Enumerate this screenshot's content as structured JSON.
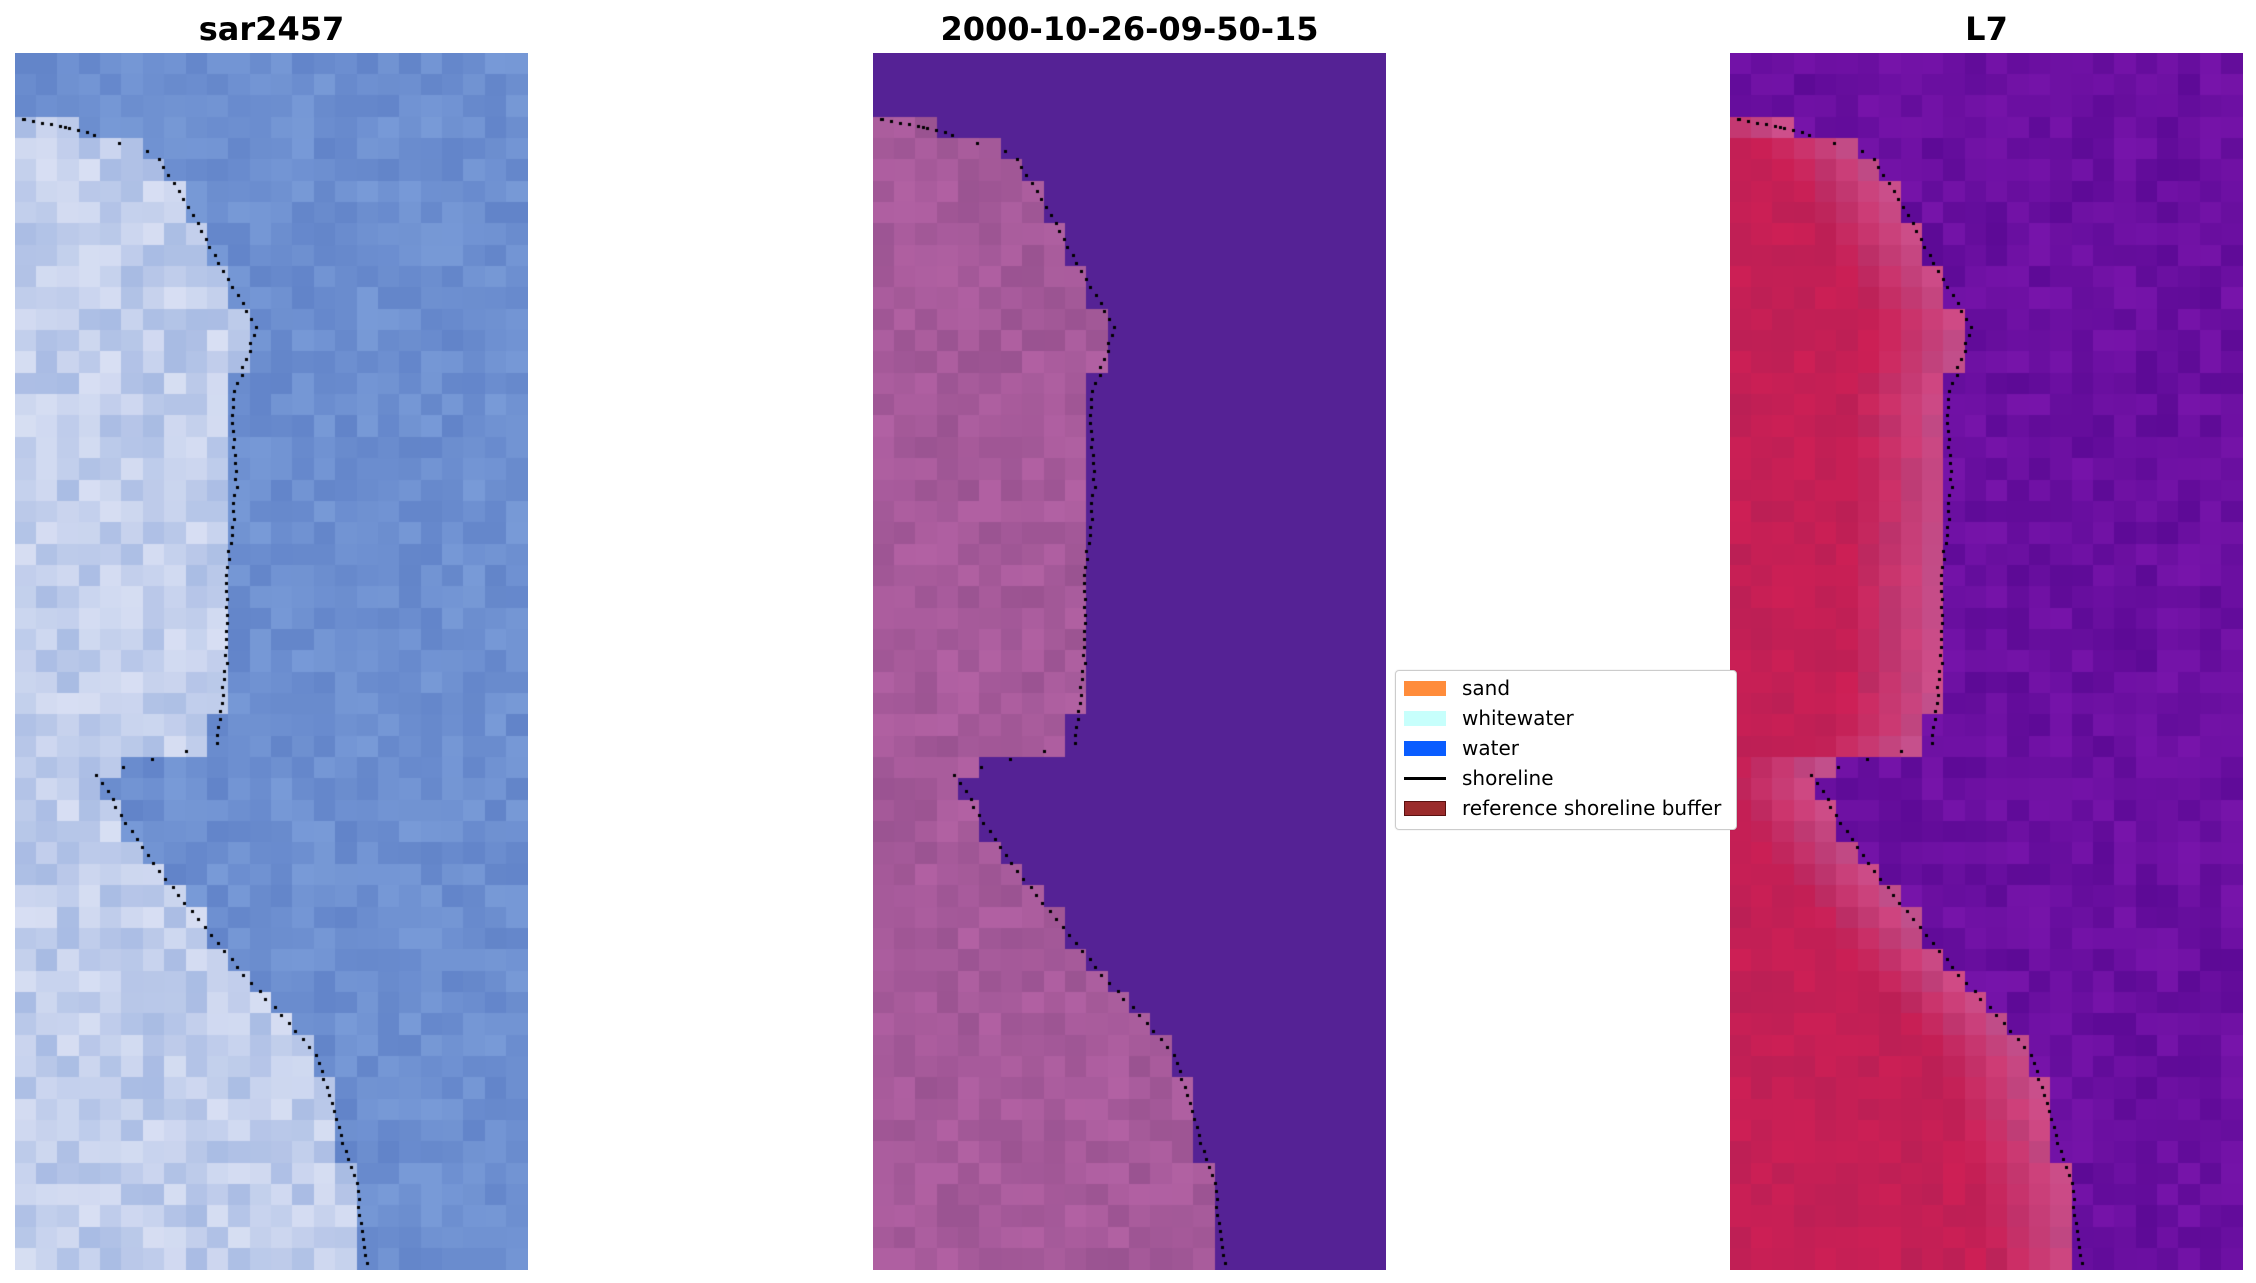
{
  "panels": [
    {
      "title": "sar2457",
      "style": "rgb",
      "pan_factor": 0
    },
    {
      "title": "2000-10-26-09-50-15",
      "style": "classified"
    },
    {
      "title": "L7",
      "style": "ndwi"
    }
  ],
  "legend": {
    "items": [
      {
        "label": "sand",
        "kind": "patch",
        "color": "#ff8c3b"
      },
      {
        "label": "whitewater",
        "kind": "patch",
        "color": "#c7fffc"
      },
      {
        "label": "water",
        "kind": "patch",
        "color": "#0a5dff"
      },
      {
        "label": "shoreline",
        "kind": "line",
        "color": "#000000"
      },
      {
        "label": "reference shoreline buffer",
        "kind": "patch",
        "color": "#9a2b2b"
      }
    ]
  },
  "colors": {
    "sea_blue": "#6d8fd0",
    "land_white": "#d8dff3",
    "class_water": "#552295",
    "class_land": "#a65a9a",
    "ndwi_land": "#c41f55",
    "ndwi_water": "#6a0fa0"
  }
}
